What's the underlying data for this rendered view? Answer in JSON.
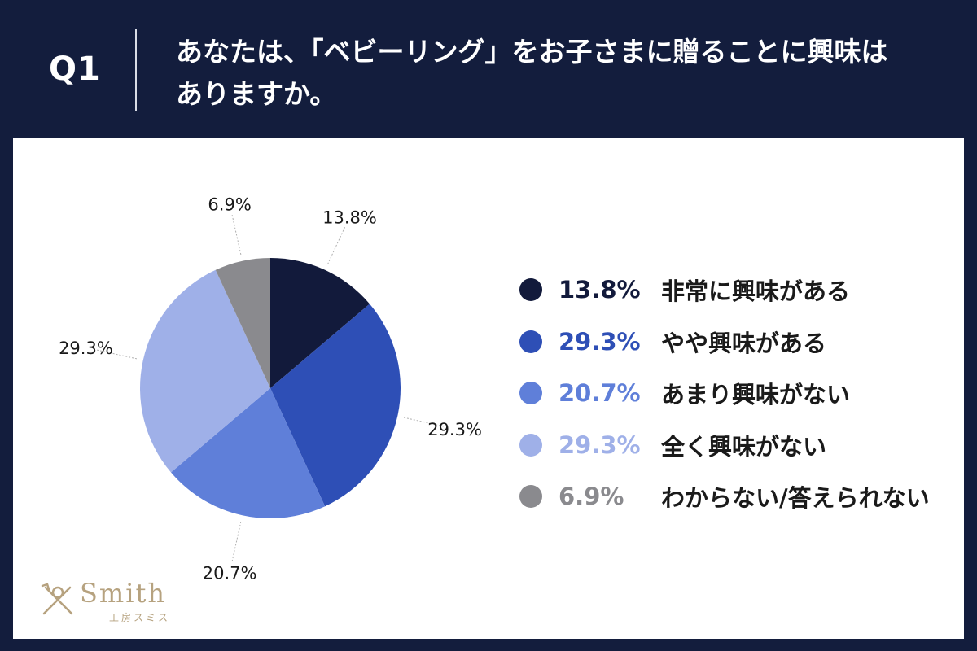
{
  "header": {
    "question": "Q1",
    "title": "あなたは、「ベビーリング」をお子さまに贈ることに興味はありますか。"
  },
  "colors": {
    "background": "#131d3d",
    "panel": "#ffffff"
  },
  "chart_data": {
    "type": "pie",
    "title": "あなたは、「ベビーリング」をお子さまに贈ることに興味はありますか。",
    "slices": [
      {
        "label": "非常に興味がある",
        "value": 13.8,
        "display": "13.8%",
        "color": "#121a3b"
      },
      {
        "label": "やや興味がある",
        "value": 29.3,
        "display": "29.3%",
        "color": "#2e4fb6"
      },
      {
        "label": "あまり興味がない",
        "value": 20.7,
        "display": "20.7%",
        "color": "#5f7fd9"
      },
      {
        "label": "全く興味がない",
        "value": 29.3,
        "display": "29.3%",
        "color": "#9fb0e8"
      },
      {
        "label": "わからない/答えられない",
        "value": 6.9,
        "display": "6.9%",
        "color": "#8a8a8e"
      }
    ],
    "start": "top",
    "direction": "clockwise",
    "legend_position": "right"
  },
  "logo": {
    "word": "Smith",
    "sub": "工房スミス"
  }
}
